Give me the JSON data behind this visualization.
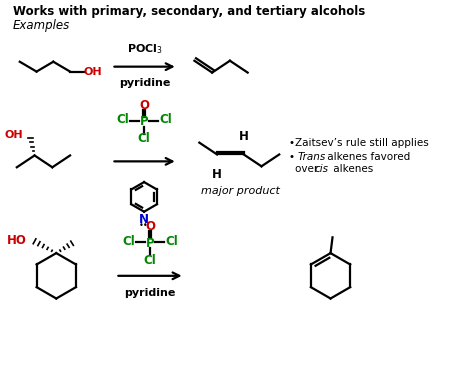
{
  "title": "Works with primary, secondary, and tertiary alcohols",
  "subtitle": "Examples",
  "bg_color": "#ffffff",
  "text_color": "#000000",
  "red_color": "#cc0000",
  "green_color": "#008800",
  "blue_color": "#0000cc",
  "notes_line1": "•Zaitsev’s rule still applies",
  "notes_line2": "• ",
  "notes_trans": "Trans",
  "notes_line2b": " alkenes favored",
  "notes_line3": "over ",
  "notes_cis": "cis",
  "notes_line3b": " alkenes",
  "reagent1_line1": "POCl$_3$",
  "reagent1_line2": "pyridine",
  "major_product_label": "major product"
}
